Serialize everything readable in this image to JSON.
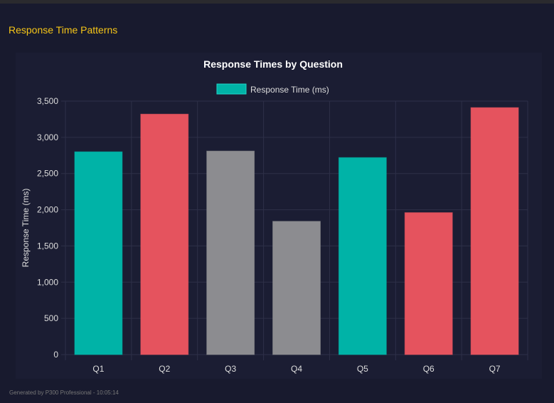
{
  "page": {
    "heading": "Response Time Patterns",
    "footer": "Generated by P300 Professional - 10:05:14"
  },
  "chart_data": {
    "type": "bar",
    "title": "Response Times by Question",
    "legend": {
      "label": "Response Time (ms)",
      "color": "#00b3a7",
      "placement": "top"
    },
    "ylabel": "Response Time (ms)",
    "xlabel": "",
    "ylim": [
      0,
      3500
    ],
    "yticks": [
      "0",
      "500",
      "1,000",
      "1,500",
      "2,000",
      "2,500",
      "3,000",
      "3,500"
    ],
    "categories": [
      "Q1",
      "Q2",
      "Q3",
      "Q4",
      "Q5",
      "Q6",
      "Q7"
    ],
    "values": [
      2800,
      3320,
      2810,
      1840,
      2720,
      1960,
      3410
    ],
    "colors": [
      "#00b3a7",
      "#e5535e",
      "#8c8c90",
      "#8c8c90",
      "#00b3a7",
      "#e5535e",
      "#e5535e"
    ],
    "grid": true
  }
}
